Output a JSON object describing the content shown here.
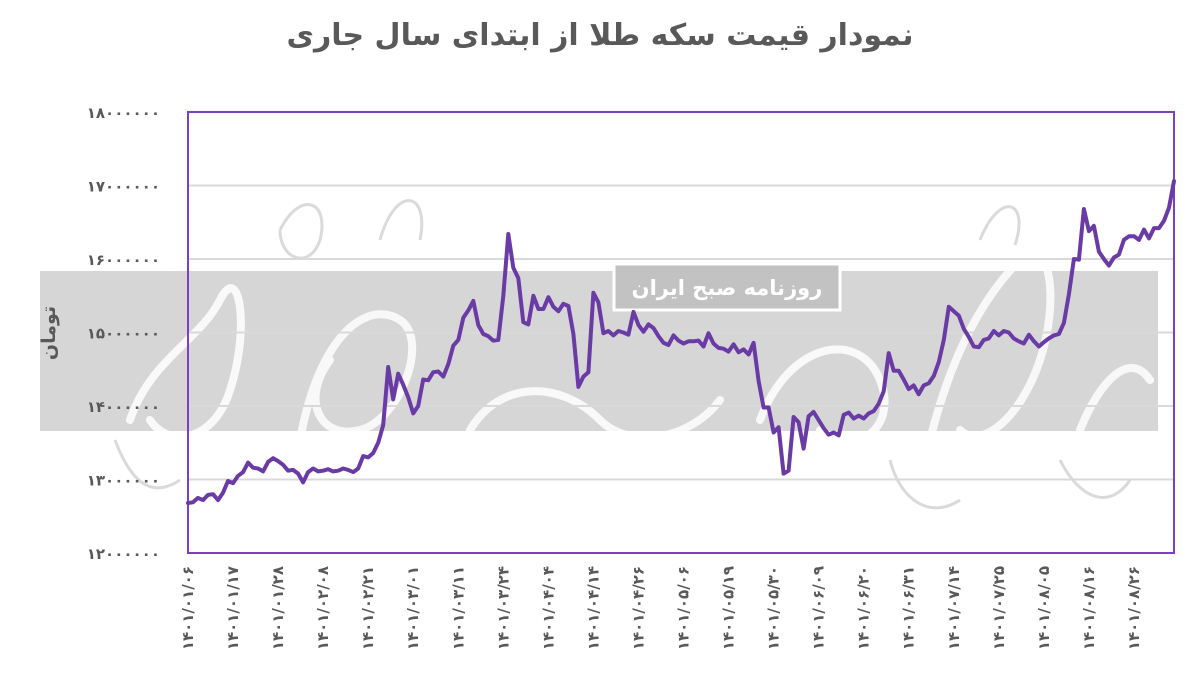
{
  "chart_data": {
    "type": "line",
    "title": "نمودار قیمت سکه طلا از ابتدای سال جاری",
    "ylabel": "تومان",
    "ylim": [
      12000000,
      18000000
    ],
    "yticks": [
      12000000,
      13000000,
      14000000,
      15000000,
      16000000,
      17000000,
      18000000
    ],
    "ytick_labels": [
      "12000000",
      "13000000",
      "14000000",
      "15000000",
      "16000000",
      "17000000",
      "18000000"
    ],
    "grid": true,
    "legend": "none",
    "colors": {
      "line": "#6a3aa5",
      "frame": "#7b3fbf",
      "grid": "#d9d9d9",
      "band": "#cfcfcf",
      "text": "#595959"
    },
    "x_tick_labels": [
      "1401/01/06",
      "1401/01/17",
      "1401/01/28",
      "1401/02/08",
      "1401/02/21",
      "1401/03/01",
      "1401/03/11",
      "1401/03/24",
      "1401/04/04",
      "1401/04/14",
      "1401/04/26",
      "1401/05/06",
      "1401/05/19",
      "1401/05/30",
      "1401/06/09",
      "1401/06/20",
      "1401/06/31",
      "1401/07/14",
      "1401/07/25",
      "1401/08/05",
      "1401/08/16",
      "1401/08/26"
    ],
    "x_tick_positions": [
      0,
      9,
      18,
      27,
      36,
      45,
      54,
      63,
      72,
      81,
      90,
      99,
      108,
      117,
      126,
      135,
      144,
      153,
      162,
      171,
      180,
      189
    ],
    "x_count": 198,
    "values": [
      12680000,
      12690000,
      12750000,
      12720000,
      12790000,
      12800000,
      12720000,
      12820000,
      12980000,
      12950000,
      13050000,
      13100000,
      13230000,
      13160000,
      13150000,
      13110000,
      13240000,
      13290000,
      13250000,
      13200000,
      13120000,
      13130000,
      13080000,
      12960000,
      13100000,
      13150000,
      13110000,
      13120000,
      13140000,
      13110000,
      13120000,
      13150000,
      13130000,
      13100000,
      13150000,
      13320000,
      13300000,
      13360000,
      13500000,
      13740000,
      14530000,
      14090000,
      14440000,
      14290000,
      14120000,
      13900000,
      14000000,
      14360000,
      14350000,
      14460000,
      14470000,
      14400000,
      14570000,
      14820000,
      14900000,
      15200000,
      15300000,
      15430000,
      15100000,
      14980000,
      14950000,
      14890000,
      14900000,
      15500000,
      16340000,
      15880000,
      15740000,
      15140000,
      15110000,
      15500000,
      15320000,
      15320000,
      15480000,
      15350000,
      15290000,
      15390000,
      15360000,
      14980000,
      14260000,
      14400000,
      14460000,
      15540000,
      15410000,
      14990000,
      15020000,
      14960000,
      15020000,
      15000000,
      14970000,
      15280000,
      15100000,
      15010000,
      15110000,
      15060000,
      14950000,
      14860000,
      14830000,
      14960000,
      14890000,
      14850000,
      14880000,
      14880000,
      14890000,
      14810000,
      14990000,
      14850000,
      14790000,
      14780000,
      14740000,
      14840000,
      14730000,
      14770000,
      14700000,
      14860000,
      14340000,
      13980000,
      13980000,
      13640000,
      13710000,
      13080000,
      13120000,
      13850000,
      13780000,
      13420000,
      13860000,
      13920000,
      13810000,
      13700000,
      13610000,
      13640000,
      13600000,
      13880000,
      13910000,
      13830000,
      13870000,
      13830000,
      13900000,
      13930000,
      14030000,
      14200000,
      14720000,
      14480000,
      14480000,
      14360000,
      14230000,
      14280000,
      14160000,
      14280000,
      14310000,
      14410000,
      14600000,
      14900000,
      15350000,
      15290000,
      15230000,
      15050000,
      14940000,
      14810000,
      14800000,
      14900000,
      14920000,
      15020000,
      14960000,
      15020000,
      15000000,
      14920000,
      14880000,
      14850000,
      14970000,
      14880000,
      14810000,
      14870000,
      14920000,
      14960000,
      14980000,
      15130000,
      15520000,
      16000000,
      15990000,
      16680000,
      16380000,
      16450000,
      16100000,
      16000000,
      15910000,
      16020000,
      16060000,
      16260000,
      16310000,
      16310000,
      16260000,
      16400000,
      16280000,
      16420000,
      16420000,
      16520000,
      16700000,
      17060000
    ],
    "annotations": [
      "روزنامه صبح ایران"
    ]
  }
}
